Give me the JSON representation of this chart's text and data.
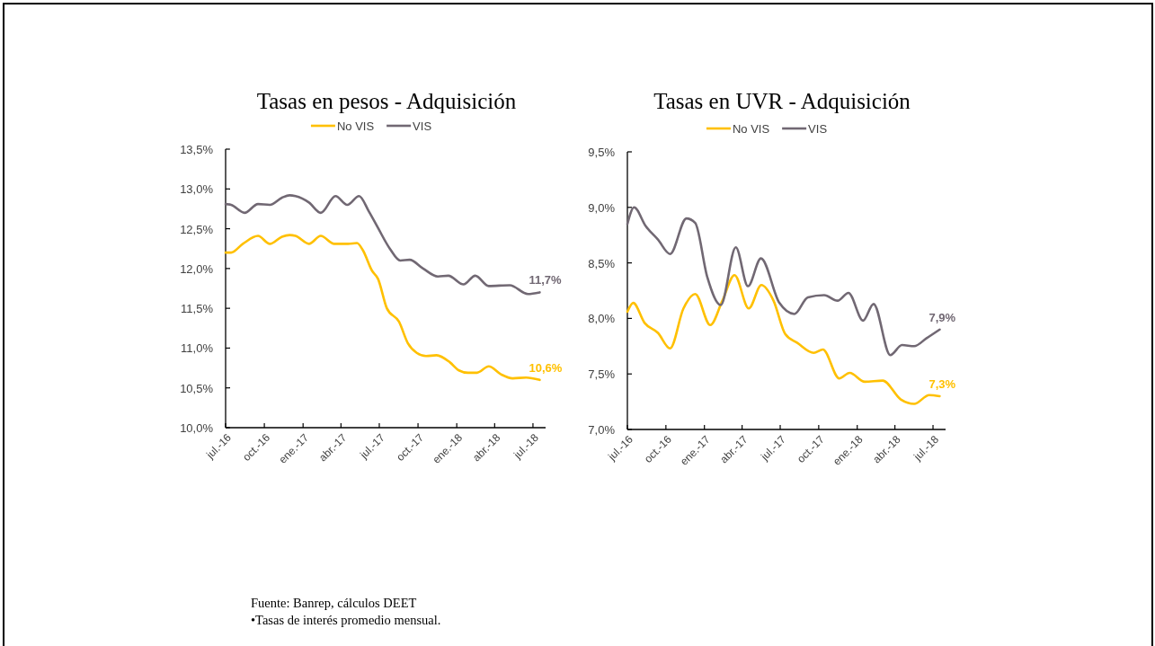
{
  "chart_data": [
    {
      "type": "line",
      "title": "Tasas en pesos - Adquisición",
      "legend": "top",
      "xlim": [
        "2016-07-01",
        "2018-07-31"
      ],
      "xticks": [
        {
          "value": "2016-07-01",
          "label": "jul.-16"
        },
        {
          "value": "2016-10-01",
          "label": "oct.-16"
        },
        {
          "value": "2017-01-01",
          "label": "ene.-17"
        },
        {
          "value": "2017-04-01",
          "label": "abr.-17"
        },
        {
          "value": "2017-07-01",
          "label": "jul.-17"
        },
        {
          "value": "2017-10-01",
          "label": "oct.-17"
        },
        {
          "value": "2018-01-01",
          "label": "ene.-18"
        },
        {
          "value": "2018-04-01",
          "label": "abr.-18"
        },
        {
          "value": "2018-07-01",
          "label": "jul.-18"
        }
      ],
      "ylim": [
        10,
        13.5
      ],
      "yticks": [
        {
          "value": 10,
          "label": "10,0%"
        },
        {
          "value": 10.5,
          "label": "10,5%"
        },
        {
          "value": 11,
          "label": "11,0%"
        },
        {
          "value": 11.5,
          "label": "11,5%"
        },
        {
          "value": 12,
          "label": "12,0%"
        },
        {
          "value": 12.5,
          "label": "12,5%"
        },
        {
          "value": 13,
          "label": "13,0%"
        },
        {
          "value": 13.5,
          "label": "13,5%"
        }
      ],
      "series": [
        {
          "name": "No VIS",
          "color": "#ffc000",
          "x": [
            "2016-07-01",
            "2016-07-14",
            "2016-08-11",
            "2016-09-16",
            "2016-10-14",
            "2016-11-12",
            "2016-11-30",
            "2016-12-14",
            "2017-01-15",
            "2017-02-12",
            "2017-03-16",
            "2017-04-18",
            "2017-05-09",
            "2017-05-23",
            "2017-06-14",
            "2017-06-28",
            "2017-07-19",
            "2017-08-17",
            "2017-09-07",
            "2017-09-28",
            "2017-10-20",
            "2017-11-14",
            "2017-12-16",
            "2018-01-06",
            "2018-01-28",
            "2018-02-18",
            "2018-03-18",
            "2018-04-16",
            "2018-05-14",
            "2018-06-15",
            "2018-07-17"
          ],
          "values": [
            12.2,
            12.2,
            12.31,
            12.41,
            12.31,
            12.4,
            12.42,
            12.41,
            12.31,
            12.41,
            12.31,
            12.31,
            12.32,
            12.23,
            11.97,
            11.87,
            11.5,
            11.33,
            11.06,
            10.94,
            10.9,
            10.91,
            10.82,
            10.72,
            10.69,
            10.69,
            10.77,
            10.67,
            10.62,
            10.63,
            10.6
          ],
          "value_labels": [
            null,
            null,
            null,
            null,
            null,
            null,
            null,
            null,
            null,
            null,
            null,
            null,
            null,
            null,
            null,
            null,
            null,
            null,
            null,
            null,
            null,
            null,
            null,
            null,
            null,
            null,
            null,
            null,
            null,
            null,
            "10,6%"
          ]
        },
        {
          "name": "VIS",
          "color": "#716873",
          "x": [
            "2016-07-01",
            "2016-07-14",
            "2016-08-15",
            "2016-09-16",
            "2016-10-14",
            "2016-11-12",
            "2016-11-30",
            "2016-12-14",
            "2017-01-15",
            "2017-02-12",
            "2017-03-19",
            "2017-04-16",
            "2017-05-14",
            "2017-06-06",
            "2017-06-28",
            "2017-07-26",
            "2017-08-20",
            "2017-09-11",
            "2017-10-13",
            "2017-11-17",
            "2017-12-12",
            "2018-01-17",
            "2018-02-14",
            "2018-03-18",
            "2018-05-07",
            "2018-06-19",
            "2018-07-17"
          ],
          "values": [
            12.81,
            12.8,
            12.7,
            12.81,
            12.8,
            12.89,
            12.92,
            12.91,
            12.83,
            12.7,
            12.91,
            12.8,
            12.91,
            12.72,
            12.51,
            12.25,
            12.1,
            12.11,
            12.0,
            11.9,
            11.91,
            11.8,
            11.91,
            11.78,
            11.79,
            11.68,
            11.7
          ],
          "value_labels": [
            null,
            null,
            null,
            null,
            null,
            null,
            null,
            null,
            null,
            null,
            null,
            null,
            null,
            null,
            null,
            null,
            null,
            null,
            null,
            null,
            null,
            null,
            null,
            null,
            null,
            null,
            "11,7%"
          ]
        }
      ],
      "annotations": [
        "Fuente: Banrep, cálculos DEET",
        "•Tasas de interés promedio mensual."
      ]
    },
    {
      "type": "line",
      "title": "Tasas en UVR - Adquisición",
      "legend": "top",
      "xlim": [
        "2016-07-01",
        "2018-07-31"
      ],
      "xticks": [
        {
          "value": "2016-07-01",
          "label": "jul.-16"
        },
        {
          "value": "2016-10-01",
          "label": "oct.-16"
        },
        {
          "value": "2017-01-01",
          "label": "ene.-17"
        },
        {
          "value": "2017-04-01",
          "label": "abr.-17"
        },
        {
          "value": "2017-07-01",
          "label": "jul.-17"
        },
        {
          "value": "2017-10-01",
          "label": "oct.-17"
        },
        {
          "value": "2018-01-01",
          "label": "ene.-18"
        },
        {
          "value": "2018-04-01",
          "label": "abr.-18"
        },
        {
          "value": "2018-07-01",
          "label": "jul.-18"
        }
      ],
      "ylim": [
        7,
        9.5
      ],
      "yticks": [
        {
          "value": 7,
          "label": "7,0%"
        },
        {
          "value": 7.5,
          "label": "7,5%"
        },
        {
          "value": 8,
          "label": "8,0%"
        },
        {
          "value": 8.5,
          "label": "8,5%"
        },
        {
          "value": 9,
          "label": "9,0%"
        },
        {
          "value": 9.5,
          "label": "9,5%"
        }
      ],
      "series": [
        {
          "name": "No VIS",
          "color": "#ffc000",
          "x": [
            "2016-07-01",
            "2016-07-15",
            "2016-08-11",
            "2016-09-12",
            "2016-10-11",
            "2016-11-12",
            "2016-12-10",
            "2017-01-15",
            "2017-02-13",
            "2017-03-14",
            "2017-04-17",
            "2017-05-17",
            "2017-06-15",
            "2017-07-13",
            "2017-08-11",
            "2017-09-19",
            "2017-10-11",
            "2017-11-19",
            "2017-12-14",
            "2018-01-19",
            "2018-03-03",
            "2018-04-15",
            "2018-05-17",
            "2018-06-22",
            "2018-07-17"
          ],
          "values": [
            8.06,
            8.14,
            7.96,
            7.87,
            7.73,
            8.09,
            8.22,
            7.94,
            8.16,
            8.39,
            8.09,
            8.3,
            8.16,
            7.86,
            7.78,
            7.69,
            7.72,
            7.46,
            7.51,
            7.43,
            7.44,
            7.27,
            7.23,
            7.31,
            7.3
          ],
          "value_labels": [
            null,
            null,
            null,
            null,
            null,
            null,
            null,
            null,
            null,
            null,
            null,
            null,
            null,
            null,
            null,
            null,
            null,
            null,
            null,
            null,
            null,
            null,
            null,
            null,
            "7,3%"
          ]
        },
        {
          "name": "VIS",
          "color": "#716873",
          "x": [
            "2016-07-01",
            "2016-07-17",
            "2016-08-14",
            "2016-09-12",
            "2016-10-11",
            "2016-11-19",
            "2016-12-10",
            "2017-01-08",
            "2017-02-09",
            "2017-03-17",
            "2017-04-15",
            "2017-05-16",
            "2017-06-29",
            "2017-08-04",
            "2017-09-05",
            "2017-10-14",
            "2017-11-15",
            "2017-12-11",
            "2018-01-15",
            "2018-02-09",
            "2018-03-21",
            "2018-04-18",
            "2018-05-17",
            "2018-06-15",
            "2018-07-17"
          ],
          "values": [
            8.85,
            9.0,
            8.83,
            8.71,
            8.58,
            8.9,
            8.86,
            8.37,
            8.12,
            8.64,
            8.29,
            8.54,
            8.14,
            8.04,
            8.19,
            8.21,
            8.16,
            8.23,
            7.98,
            8.13,
            7.67,
            7.76,
            7.75,
            7.82,
            7.9
          ],
          "value_labels": [
            null,
            null,
            null,
            null,
            null,
            null,
            null,
            null,
            null,
            null,
            null,
            null,
            null,
            null,
            null,
            null,
            null,
            null,
            null,
            null,
            null,
            null,
            null,
            null,
            "7,9%"
          ]
        }
      ]
    }
  ]
}
